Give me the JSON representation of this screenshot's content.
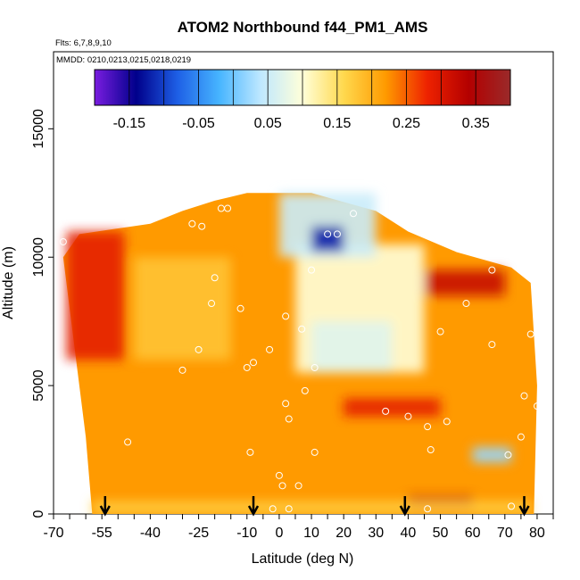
{
  "chart_data": {
    "type": "heatmap",
    "title": "ATOM2 Northbound f44_PM1_AMS",
    "subtitle_flights": "Flts: 6,7,8,9,10",
    "subtitle_dates": "MMDD: 0210,0213,0215,0218,0219",
    "xlabel": "Latitude (deg N)",
    "ylabel": "Altitude (m)",
    "xlim": [
      -70,
      85
    ],
    "ylim": [
      0,
      18000
    ],
    "x_ticks": [
      {
        "value": -70,
        "label": "-70"
      },
      {
        "value": -55,
        "label": "-55"
      },
      {
        "value": -40,
        "label": "-40"
      },
      {
        "value": -25,
        "label": "-25"
      },
      {
        "value": -10,
        "label": "-10"
      },
      {
        "value": 0,
        "label": "0"
      },
      {
        "value": 10,
        "label": "10"
      },
      {
        "value": 20,
        "label": "20"
      },
      {
        "value": 30,
        "label": "30"
      },
      {
        "value": 40,
        "label": "40"
      },
      {
        "value": 50,
        "label": "50"
      },
      {
        "value": 60,
        "label": "60"
      },
      {
        "value": 70,
        "label": "70"
      },
      {
        "value": 80,
        "label": "80"
      }
    ],
    "x_minor_ticks": [
      -65,
      -60,
      -50,
      -45,
      -35,
      -30,
      -20,
      -15,
      -5,
      5,
      15,
      25,
      35,
      45,
      55,
      65,
      75,
      85
    ],
    "y_ticks": [
      {
        "value": 0,
        "label": "0"
      },
      {
        "value": 5000,
        "label": "5000"
      },
      {
        "value": 10000,
        "label": "10000"
      },
      {
        "value": 15000,
        "label": "15000"
      }
    ],
    "colorbar": {
      "range": [
        -0.2,
        0.4
      ],
      "tick_values": [
        -0.15,
        -0.05,
        0.05,
        0.15,
        0.25,
        0.35
      ],
      "tick_labels": [
        "-0.15",
        "-0.05",
        "0.05",
        "0.15",
        "0.25",
        "0.35"
      ],
      "colors": [
        "#7a1de0",
        "#00008b",
        "#1e60e6",
        "#47b5ff",
        "#bfe8ff",
        "#ffffd9",
        "#ffd84d",
        "#ff9a00",
        "#ee2200",
        "#b30000",
        "#9a2a2a"
      ]
    },
    "arrow_latitudes": [
      -54,
      -8,
      39,
      76
    ],
    "regions": [
      {
        "name": "",
        "lat": [
          -67,
          80
        ],
        "alt": [
          0,
          11000
        ],
        "value": 0.22
      },
      {
        "name": "",
        "lat": [
          -45,
          -15
        ],
        "alt": [
          6000,
          10000
        ],
        "value": 0.18
      },
      {
        "name": "",
        "lat": [
          5,
          45
        ],
        "alt": [
          5500,
          10500
        ],
        "value": 0.1
      },
      {
        "name": "",
        "lat": [
          10,
          35
        ],
        "alt": [
          5500,
          7500
        ],
        "value": 0.07
      },
      {
        "name": "",
        "lat": [
          0,
          30
        ],
        "alt": [
          10000,
          12500
        ],
        "value": 0.05
      },
      {
        "name": "",
        "lat": [
          10,
          20
        ],
        "alt": [
          10200,
          11200
        ],
        "value": -0.12
      },
      {
        "name": "",
        "lat": [
          -66,
          -48
        ],
        "alt": [
          6000,
          11000
        ],
        "value": 0.29
      },
      {
        "name": "",
        "lat": [
          45,
          70
        ],
        "alt": [
          8500,
          9500
        ],
        "value": 0.32
      },
      {
        "name": "",
        "lat": [
          20,
          50
        ],
        "alt": [
          3800,
          4500
        ],
        "value": 0.29
      },
      {
        "name": "",
        "lat": [
          40,
          60
        ],
        "alt": [
          0,
          700
        ],
        "value": 0.32
      },
      {
        "name": "",
        "lat": [
          60,
          72
        ],
        "alt": [
          2000,
          2600
        ],
        "value": 0.02
      },
      {
        "name": "",
        "lat": [
          -58,
          78
        ],
        "alt": [
          0,
          500
        ],
        "value": 0.17
      }
    ],
    "sample_points": [
      [
        -67,
        10600
      ],
      [
        -47,
        2800
      ],
      [
        -27,
        11300
      ],
      [
        -24,
        11200
      ],
      [
        -18,
        11900
      ],
      [
        -16,
        11900
      ],
      [
        -20,
        9200
      ],
      [
        -21,
        8200
      ],
      [
        -12,
        8000
      ],
      [
        -25,
        6400
      ],
      [
        -30,
        5600
      ],
      [
        -10,
        5700
      ],
      [
        -8,
        5900
      ],
      [
        -3,
        6400
      ],
      [
        2,
        7700
      ],
      [
        7,
        7200
      ],
      [
        11,
        5700
      ],
      [
        8,
        4800
      ],
      [
        2,
        4300
      ],
      [
        3,
        3700
      ],
      [
        -9,
        2400
      ],
      [
        0,
        1500
      ],
      [
        1,
        1100
      ],
      [
        6,
        1100
      ],
      [
        3,
        200
      ],
      [
        -2,
        200
      ],
      [
        11,
        2400
      ],
      [
        15,
        10900
      ],
      [
        18,
        10900
      ],
      [
        23,
        11700
      ],
      [
        33,
        4000
      ],
      [
        40,
        3800
      ],
      [
        46,
        3400
      ],
      [
        52,
        3600
      ],
      [
        47,
        2500
      ],
      [
        46,
        200
      ],
      [
        50,
        7100
      ],
      [
        58,
        8200
      ],
      [
        66,
        6600
      ],
      [
        78,
        7000
      ],
      [
        76,
        4600
      ],
      [
        80,
        4200
      ],
      [
        75,
        3000
      ],
      [
        71,
        2300
      ],
      [
        72,
        300
      ],
      [
        66,
        9500
      ],
      [
        10,
        9500
      ]
    ],
    "legend": "none",
    "grid": false
  }
}
